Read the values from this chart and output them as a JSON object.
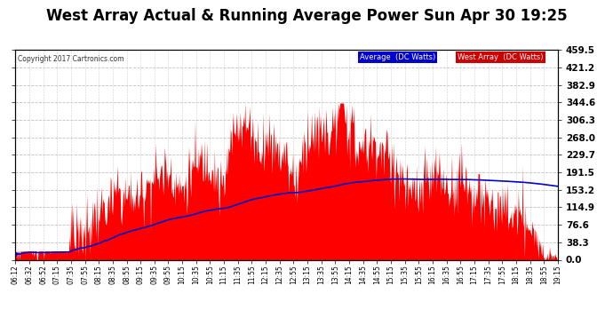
{
  "title": "West Array Actual & Running Average Power Sun Apr 30 19:25",
  "copyright": "Copyright 2017 Cartronics.com",
  "legend_avg": "Average  (DC Watts)",
  "legend_west": "West Array  (DC Watts)",
  "ylabel_right": [
    "459.5",
    "421.2",
    "382.9",
    "344.6",
    "306.3",
    "268.0",
    "229.7",
    "191.5",
    "153.2",
    "114.9",
    "76.6",
    "38.3",
    "0.0"
  ],
  "ytick_values": [
    459.5,
    421.2,
    382.9,
    344.6,
    306.3,
    268.0,
    229.7,
    191.5,
    153.2,
    114.9,
    76.6,
    38.3,
    0.0
  ],
  "ymax": 459.5,
  "background_color": "#ffffff",
  "plot_bg_color": "#ffffff",
  "bar_color": "#ff0000",
  "avg_line_color": "#0000cc",
  "grid_color": "#bbbbbb",
  "title_color": "#000000",
  "title_fontsize": 12,
  "tick_labels": [
    "06:12",
    "06:32",
    "06:52",
    "07:15",
    "07:35",
    "07:55",
    "08:15",
    "08:35",
    "08:55",
    "09:15",
    "09:35",
    "09:55",
    "10:15",
    "10:35",
    "10:55",
    "11:15",
    "11:35",
    "11:55",
    "12:15",
    "12:35",
    "12:55",
    "13:15",
    "13:35",
    "13:55",
    "14:15",
    "14:35",
    "14:55",
    "15:15",
    "15:35",
    "15:55",
    "16:15",
    "16:35",
    "16:55",
    "17:15",
    "17:35",
    "17:55",
    "18:15",
    "18:35",
    "18:55",
    "19:15"
  ]
}
